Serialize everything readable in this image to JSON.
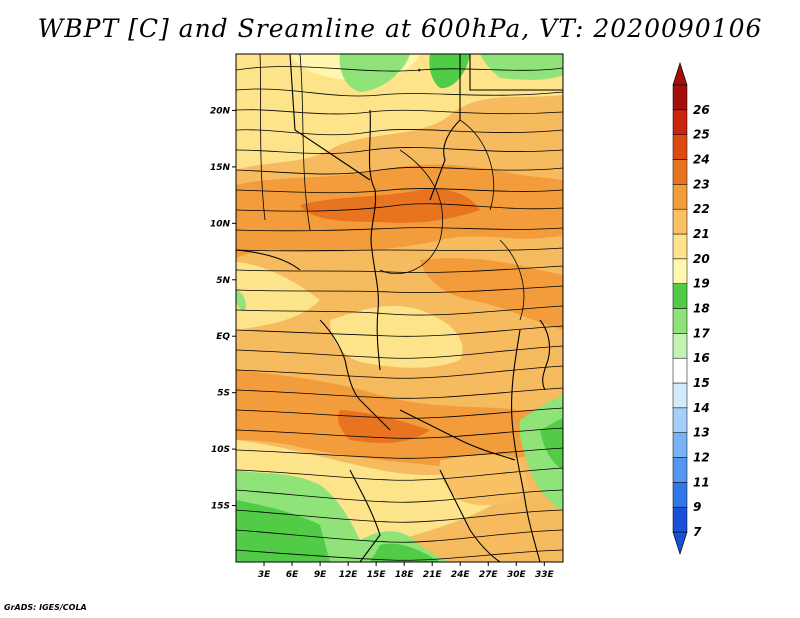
{
  "title": "WBPT [C] and Sreamline at 600hPa, VT: 2020090106",
  "footer": "GrADS: IGES/COLA",
  "map": {
    "lat_labels": [
      "20N",
      "15N",
      "10N",
      "5N",
      "EQ",
      "5S",
      "10S",
      "15S"
    ],
    "lat_values": [
      20,
      15,
      10,
      5,
      0,
      -5,
      -10,
      -15
    ],
    "lon_labels": [
      "3E",
      "6E",
      "9E",
      "12E",
      "15E",
      "18E",
      "21E",
      "24E",
      "27E",
      "30E",
      "33E"
    ],
    "lon_values": [
      3,
      6,
      9,
      12,
      15,
      18,
      21,
      24,
      27,
      30,
      33
    ],
    "lon_range": [
      0,
      35
    ],
    "lat_range": [
      -20,
      25
    ]
  },
  "colorbar": {
    "labels": [
      "7",
      "9",
      "11",
      "12",
      "13",
      "14",
      "15",
      "16",
      "17",
      "18",
      "19",
      "20",
      "21",
      "22",
      "23",
      "24",
      "25",
      "26"
    ],
    "colors": [
      "#1a4fd8",
      "#3377e8",
      "#5596ef",
      "#79b3f5",
      "#a5d0fa",
      "#d3ecfc",
      "#ffffff",
      "#c4f1b4",
      "#8fe378",
      "#52cc46",
      "#fff7b0",
      "#fde38a",
      "#f9c163",
      "#f39c3b",
      "#e8741f",
      "#dc4a12",
      "#c9240e",
      "#a3100b"
    ],
    "arrow_low": "#1a4fd8",
    "arrow_high": "#a3100b"
  }
}
